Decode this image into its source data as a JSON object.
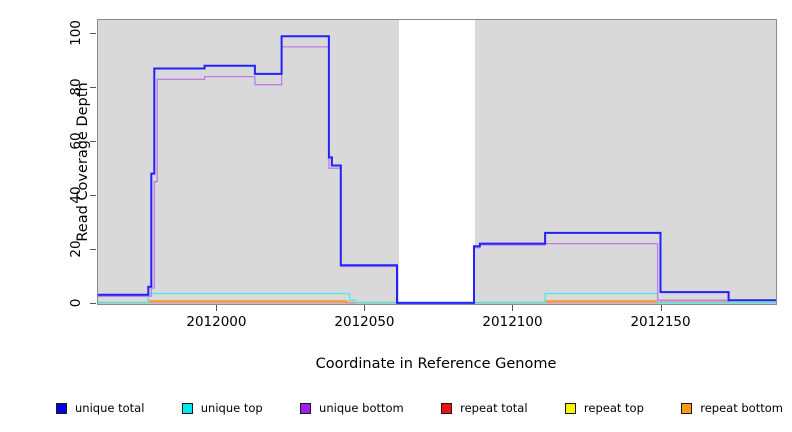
{
  "figure": {
    "y_axis_title": "Read Coverage Depth",
    "x_axis_title": "Coordinate in Reference Genome"
  },
  "chart_data": {
    "type": "line",
    "line_style": "step-after",
    "title": "",
    "xlabel": "Coordinate in Reference Genome",
    "ylabel": "Read Coverage Depth",
    "x_range": [
      2011960,
      2012189
    ],
    "y_range": [
      -0.4,
      105
    ],
    "x_tick_values": [
      2012000,
      2012050,
      2012100,
      2012150
    ],
    "x_tick_labels": [
      "2012000",
      "2012050",
      "2012100",
      "2012150"
    ],
    "y_tick_values": [
      0,
      20,
      40,
      60,
      80,
      100
    ],
    "y_tick_labels": [
      "0",
      "20",
      "40",
      "60",
      "80",
      "100"
    ],
    "grid": false,
    "plot_background": "#d9d9d9",
    "masked_region": {
      "x_start": 2012061.5,
      "x_end": 2012087.5,
      "color": "#ffffff"
    },
    "legend_position": "bottom",
    "series": [
      {
        "name": "repeat top",
        "line_color": "#90cf90",
        "line_width": 1.3,
        "points": [
          [
            2011960,
            0.2
          ],
          [
            2012189,
            0.2
          ]
        ]
      },
      {
        "name": "repeat bottom",
        "line_color": "#ff9414",
        "line_width": 1.4,
        "points": [
          [
            2011960,
            0
          ],
          [
            2011977,
            0.7
          ],
          [
            2012044,
            0
          ],
          [
            2012111,
            0.7
          ],
          [
            2012149,
            0
          ],
          [
            2012189,
            0
          ]
        ]
      },
      {
        "name": "repeat total",
        "line_color": "#e88da0",
        "line_width": 1.3,
        "points": [
          [
            2011960,
            0
          ],
          [
            2012150,
            0.7
          ],
          [
            2012173,
            0
          ],
          [
            2012189,
            0
          ]
        ]
      },
      {
        "name": "unique top",
        "line_color": "#4de9f2",
        "line_width": 1.3,
        "points": [
          [
            2011960,
            0
          ],
          [
            2011977,
            3.5
          ],
          [
            2012045,
            1
          ],
          [
            2012047,
            0
          ],
          [
            2012111,
            3.5
          ],
          [
            2012149,
            0
          ],
          [
            2012189,
            0
          ]
        ]
      },
      {
        "name": "unique bottom",
        "line_color": "#bd7fe6",
        "line_width": 1.3,
        "points": [
          [
            2011960,
            2.5
          ],
          [
            2011978,
            5.5
          ],
          [
            2011979,
            45
          ],
          [
            2011980,
            83
          ],
          [
            2011996,
            84
          ],
          [
            2012013,
            81
          ],
          [
            2012022,
            95
          ],
          [
            2012038,
            50
          ],
          [
            2012042,
            13.5
          ],
          [
            2012061,
            0
          ],
          [
            2012087,
            20.5
          ],
          [
            2012089,
            21.5
          ],
          [
            2012111,
            22
          ],
          [
            2012149,
            1
          ],
          [
            2012189,
            1
          ]
        ]
      },
      {
        "name": "unique total",
        "line_color": "#2222ff",
        "line_width": 2,
        "points": [
          [
            2011960,
            3
          ],
          [
            2011977,
            6
          ],
          [
            2011978,
            48
          ],
          [
            2011979,
            87
          ],
          [
            2011996,
            88
          ],
          [
            2012013,
            85
          ],
          [
            2012022,
            99
          ],
          [
            2012038,
            54
          ],
          [
            2012039,
            51
          ],
          [
            2012042,
            14
          ],
          [
            2012061,
            0
          ],
          [
            2012087,
            21
          ],
          [
            2012089,
            22
          ],
          [
            2012111,
            26
          ],
          [
            2012150,
            4
          ],
          [
            2012173,
            1
          ],
          [
            2012189,
            1
          ]
        ]
      }
    ]
  },
  "legend": {
    "items": [
      {
        "label": "unique total",
        "color": "#0000ee"
      },
      {
        "label": "unique top",
        "color": "#00e7ee"
      },
      {
        "label": "unique bottom",
        "color": "#a020f0"
      },
      {
        "label": "repeat total",
        "color": "#ee1111"
      },
      {
        "label": "repeat top",
        "color": "#f5f500"
      },
      {
        "label": "repeat bottom",
        "color": "#ff9912"
      }
    ]
  }
}
